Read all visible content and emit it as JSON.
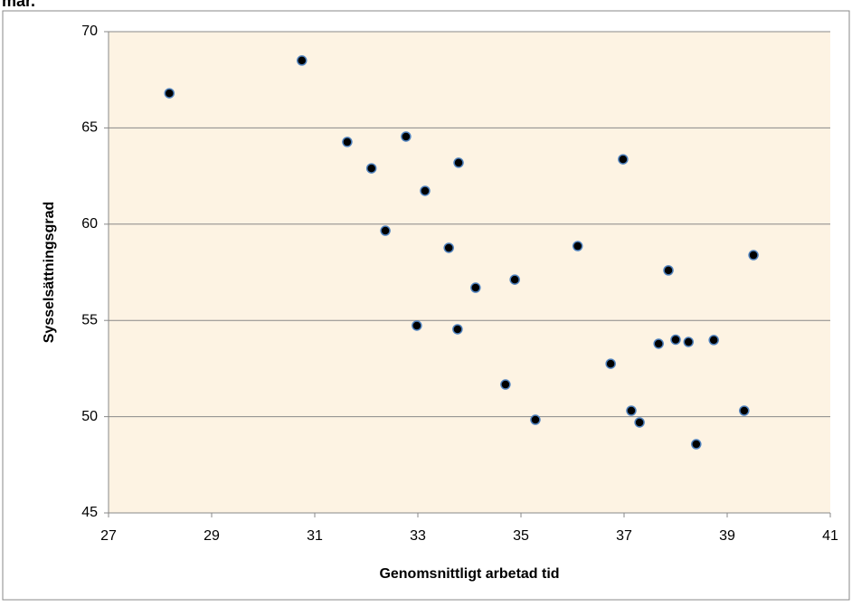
{
  "chart_data": {
    "type": "scatter",
    "title": "mar.",
    "x_label": "Genomsnittligt arbetad tid",
    "y_label": "Sysselsättningsgrad",
    "x": [
      28.18,
      30.75,
      31.63,
      32.77,
      32.1,
      33.14,
      33.79,
      32.37,
      33.6,
      34.12,
      34.88,
      32.98,
      33.77,
      34.7,
      35.28,
      36.1,
      36.74,
      36.98,
      37.14,
      37.3,
      37.86,
      37.67,
      38.0,
      38.25,
      38.4,
      38.74,
      39.33,
      39.51
    ],
    "values": [
      66.8,
      68.5,
      64.27,
      64.55,
      62.9,
      61.73,
      63.19,
      59.66,
      58.77,
      56.7,
      57.12,
      54.73,
      54.54,
      51.67,
      49.84,
      58.86,
      52.75,
      63.37,
      50.31,
      49.7,
      57.6,
      53.79,
      54.0,
      53.88,
      48.57,
      53.98,
      50.31,
      58.39
    ],
    "color": "#000000",
    "edge_color": "#4f81bd",
    "background": "#fdf3e3",
    "xlim": [
      27,
      41
    ],
    "xticks": [
      27,
      29,
      31,
      33,
      35,
      37,
      39,
      41
    ],
    "ylim": [
      45,
      70
    ],
    "yticks": [
      45,
      50,
      55,
      60,
      65,
      70
    ],
    "grid": true
  }
}
